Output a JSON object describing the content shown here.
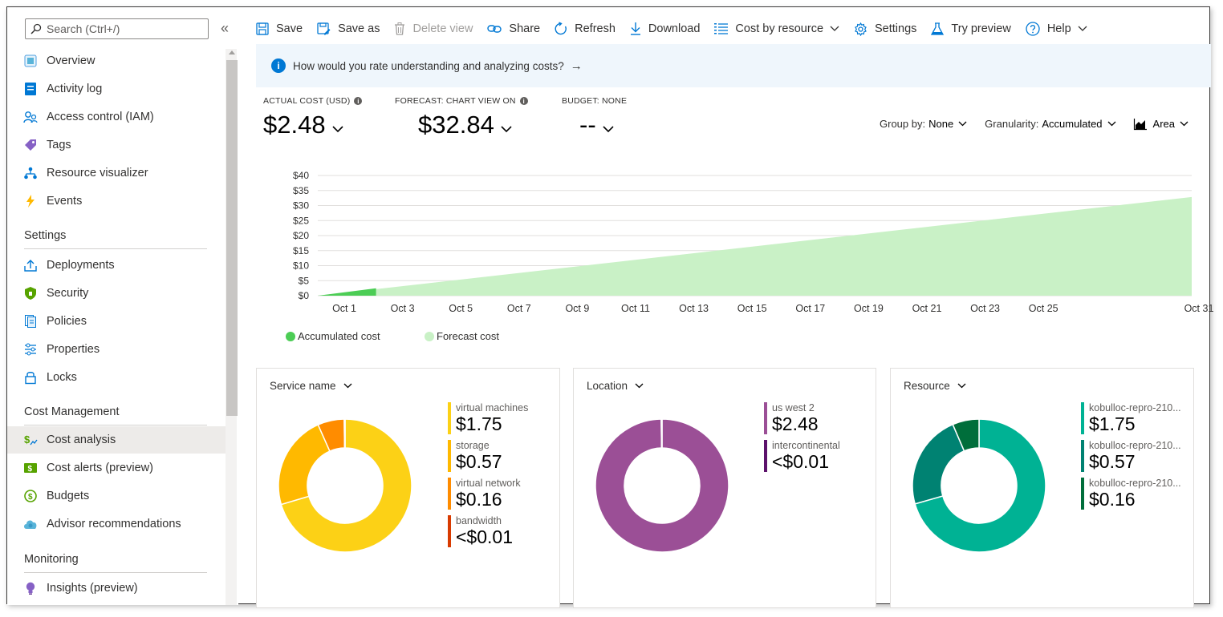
{
  "sidebar": {
    "search_placeholder": "Search (Ctrl+/)",
    "collapse_label": "«",
    "items_top": [
      {
        "label": "Overview",
        "icon": "overview-icon"
      },
      {
        "label": "Activity log",
        "icon": "activity-log-icon"
      },
      {
        "label": "Access control (IAM)",
        "icon": "people-icon"
      },
      {
        "label": "Tags",
        "icon": "tag-icon"
      },
      {
        "label": "Resource visualizer",
        "icon": "hierarchy-icon"
      },
      {
        "label": "Events",
        "icon": "lightning-icon"
      }
    ],
    "settings_heading": "Settings",
    "settings_items": [
      {
        "label": "Deployments",
        "icon": "upload-icon"
      },
      {
        "label": "Security",
        "icon": "shield-icon"
      },
      {
        "label": "Policies",
        "icon": "policy-icon"
      },
      {
        "label": "Properties",
        "icon": "sliders-icon"
      },
      {
        "label": "Locks",
        "icon": "lock-icon"
      }
    ],
    "cost_heading": "Cost Management",
    "cost_items": [
      {
        "label": "Cost analysis",
        "icon": "cost-analysis-icon"
      },
      {
        "label": "Cost alerts (preview)",
        "icon": "cost-alert-icon"
      },
      {
        "label": "Budgets",
        "icon": "budget-icon"
      },
      {
        "label": "Advisor recommendations",
        "icon": "cloud-advisor-icon"
      }
    ],
    "monitoring_heading": "Monitoring",
    "monitoring_items": [
      {
        "label": "Insights (preview)",
        "icon": "lightbulb-icon"
      }
    ]
  },
  "toolbar": {
    "save": "Save",
    "save_as": "Save as",
    "delete_view": "Delete view",
    "share": "Share",
    "refresh": "Refresh",
    "download": "Download",
    "cost_by_resource": "Cost by resource",
    "settings": "Settings",
    "try_preview": "Try preview",
    "help": "Help"
  },
  "banner": {
    "text": "How would you rate understanding and analyzing costs?",
    "arrow": "→"
  },
  "kpis": {
    "actual_label": "ACTUAL COST (USD)",
    "actual_value": "$2.48",
    "forecast_label": "FORECAST: CHART VIEW ON",
    "forecast_value": "$32.84",
    "budget_label": "BUDGET: NONE",
    "budget_value": "--"
  },
  "controls": {
    "group_by_label": "Group by:",
    "group_by_value": "None",
    "granularity_label": "Granularity:",
    "granularity_value": "Accumulated",
    "chart_type": "Area"
  },
  "colors": {
    "accent": "#0078d4",
    "accumulated": "#4ccd55",
    "forecast": "#c9f1c6"
  },
  "chart_data": [
    {
      "type": "area",
      "title": "",
      "xlabel": "",
      "ylabel": "",
      "ylim": [
        0,
        40
      ],
      "y_ticks": [
        "$0",
        "$5",
        "$10",
        "$15",
        "$20",
        "$25",
        "$30",
        "$35",
        "$40"
      ],
      "x_ticks": [
        "Oct 1",
        "Oct 3",
        "Oct 5",
        "Oct 7",
        "Oct 9",
        "Oct 11",
        "Oct 13",
        "Oct 15",
        "Oct 17",
        "Oct 19",
        "Oct 21",
        "Oct 23",
        "Oct 25",
        "Oct 31"
      ],
      "series": [
        {
          "name": "Accumulated cost",
          "x": [
            1,
            3
          ],
          "values": [
            0,
            2.48
          ],
          "color": "#4ccd55"
        },
        {
          "name": "Forecast cost",
          "x": [
            1,
            31
          ],
          "values": [
            0,
            32.84
          ],
          "color": "#c9f1c6"
        }
      ],
      "x_domain": [
        1,
        31
      ],
      "legend": "bottom-left"
    },
    {
      "type": "pie",
      "title": "Service name",
      "labels": [
        "virtual machines",
        "storage",
        "virtual network",
        "bandwidth"
      ],
      "amounts": [
        "$1.75",
        "$0.57",
        "$0.16",
        "<$0.01"
      ],
      "values": [
        1.75,
        0.57,
        0.16,
        0.005
      ],
      "colors": [
        "#fcd116",
        "#ffb900",
        "#ff8c00",
        "#d83b01"
      ]
    },
    {
      "type": "pie",
      "title": "Location",
      "labels": [
        "us west 2",
        "intercontinental"
      ],
      "amounts": [
        "$2.48",
        "<$0.01"
      ],
      "values": [
        2.48,
        0.005
      ],
      "colors": [
        "#9b4f96",
        "#5c126b"
      ]
    },
    {
      "type": "pie",
      "title": "Resource",
      "labels": [
        "kobulloc-repro-210...",
        "kobulloc-repro-210...",
        "kobulloc-repro-210..."
      ],
      "amounts": [
        "$1.75",
        "$0.57",
        "$0.16"
      ],
      "values": [
        1.75,
        0.57,
        0.16
      ],
      "colors": [
        "#00b294",
        "#008272",
        "#006e3b"
      ]
    }
  ]
}
